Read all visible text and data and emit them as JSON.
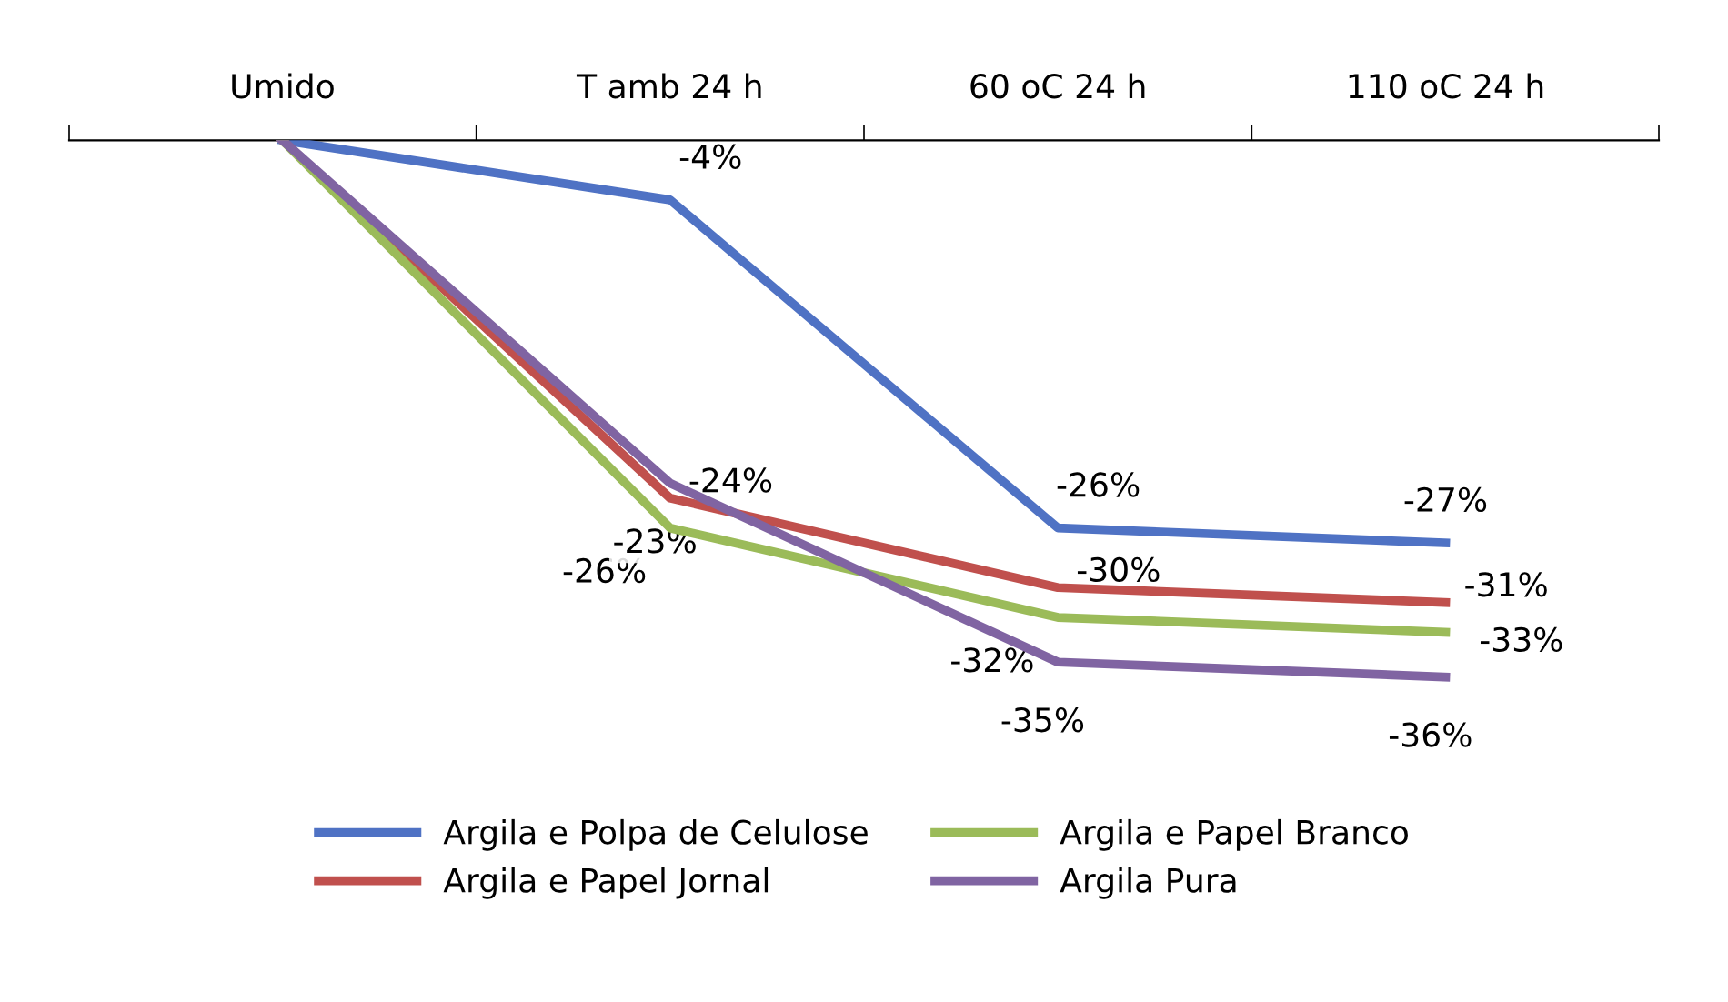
{
  "chart_data": {
    "type": "line",
    "categories": [
      "Umido",
      "T amb 24 h",
      "60 oC 24 h",
      "110 oC 24 h"
    ],
    "series": [
      {
        "name": "Argila e Polpa de Celulose",
        "color": "#4f72c4",
        "values": [
          0,
          -4,
          -26,
          -27
        ],
        "value_labels": [
          null,
          "-4%",
          "-26%",
          "-27%"
        ]
      },
      {
        "name": "Argila e Papel Jornal",
        "color": "#c0504d",
        "values": [
          0,
          -24,
          -30,
          -31
        ],
        "value_labels": [
          null,
          "-24%",
          "-30%",
          "-31%"
        ]
      },
      {
        "name": "Argila e Papel Branco",
        "color": "#9bbb59",
        "values": [
          0,
          -26,
          -32,
          -33
        ],
        "value_labels": [
          null,
          "-26%",
          "-32%",
          "-33%"
        ]
      },
      {
        "name": "Argila Pura",
        "color": "#8064a2",
        "values": [
          0,
          -23,
          -35,
          -36
        ],
        "value_labels": [
          null,
          "-23%",
          "-35%",
          "-36%"
        ]
      }
    ],
    "legend": "bottom",
    "grid": false,
    "marker": "none",
    "line_style": "solid"
  }
}
